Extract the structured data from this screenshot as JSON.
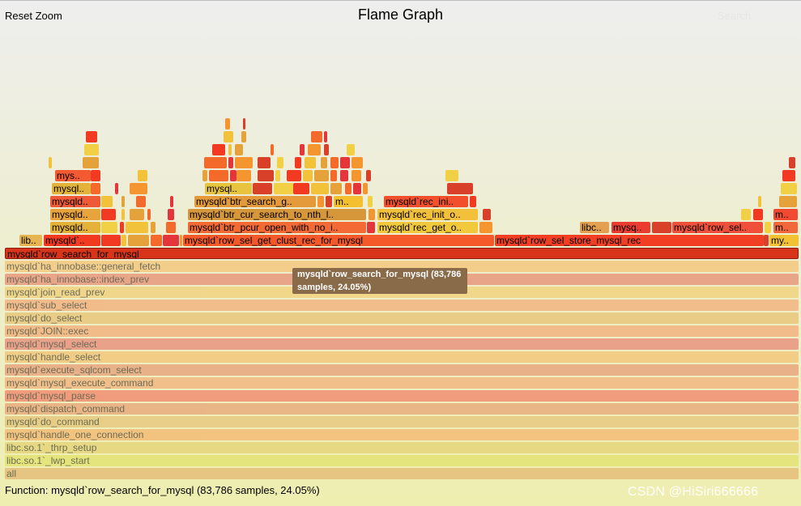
{
  "header": {
    "reset_zoom": "Reset Zoom",
    "title": "Flame Graph",
    "search": "Search"
  },
  "tooltip": {
    "line1": "mysqld`row_search_for_mysql (83,786",
    "line2": "samples, 24.05%)"
  },
  "details": "Function: mysqld`row_search_for_mysql (83,786 samples, 24.05%)",
  "watermark": "CSDN @HiSiri666666",
  "stack_frames": [
    {
      "name": "all",
      "color": "#e0a35a"
    },
    {
      "name": "libc.so.1`_lwp_start",
      "color": "#dede50"
    },
    {
      "name": "libc.so.1`_thrp_setup",
      "color": "#e2c85a"
    },
    {
      "name": "mysqld`handle_one_connection",
      "color": "#f7a050"
    },
    {
      "name": "mysqld`do_command",
      "color": "#e3b45e"
    },
    {
      "name": "mysqld`dispatch_command",
      "color": "#e6885a"
    },
    {
      "name": "mysqld`mysql_parse",
      "color": "#f25a48"
    },
    {
      "name": "mysqld`mysql_execute_command",
      "color": "#f49a5e"
    },
    {
      "name": "mysqld`execute_sqlcom_select",
      "color": "#e4805a"
    },
    {
      "name": "mysqld`handle_select",
      "color": "#f5b255"
    },
    {
      "name": "mysqld`mysql_select",
      "color": "#e5635a"
    },
    {
      "name": "mysqld`JOIN::exec",
      "color": "#f49458"
    },
    {
      "name": "mysqld`do_select",
      "color": "#e6b252"
    },
    {
      "name": "mysqld`sub_select",
      "color": "#f49558"
    },
    {
      "name": "mysqld`join_read_prev",
      "color": "#f2c456"
    },
    {
      "name": "mysqld`ha_innobase::index_prev",
      "color": "#e56a50"
    },
    {
      "name": "mysqld`ha_innobase::general_fetch",
      "color": "#f8b454"
    },
    {
      "name": "mysqld`row_search_for_mysql",
      "color": "#d8341a"
    }
  ],
  "upper_frames": [
    {
      "name": "lib..",
      "color": "#e6b450"
    },
    {
      "name": "mysqld`..",
      "color": "#f23a20"
    },
    {
      "name": "mysqld`row_sel_get_clust_rec_for_mysql",
      "color": "#f5592a"
    },
    {
      "name": "mysqld`row_sel_store_mysql_rec",
      "color": "#f23e22"
    },
    {
      "name": "my..",
      "color": "#f2c232"
    },
    {
      "name": "mysqld..",
      "color": "#e4b238"
    },
    {
      "name": "mysqld`btr_pcur_open_with_no_i..",
      "color": "#f46a34"
    },
    {
      "name": "mysqld`rec_get_o..",
      "color": "#f2c83c"
    },
    {
      "name": "libc..",
      "color": "#e2a050"
    },
    {
      "name": "mysq..",
      "color": "#ea3d30"
    },
    {
      "name": "mysqld`row_sel..",
      "color": "#f0503a"
    },
    {
      "name": "m..",
      "color": "#f2683a"
    },
    {
      "name": "mysqld..",
      "color": "#e8a43c"
    },
    {
      "name": "mysqld`btr_cur_search_to_nth_l..",
      "color": "#d6963a"
    },
    {
      "name": "mysqld`rec_init_o..",
      "color": "#f2c03a"
    },
    {
      "name": "m..",
      "color": "#f24a30"
    },
    {
      "name": "mysqld..",
      "color": "#ee5a38"
    },
    {
      "name": "mysqld`btr_search_g..",
      "color": "#e49a3a"
    },
    {
      "name": "m..",
      "color": "#f4c030"
    },
    {
      "name": "mysqld`rec_ini..",
      "color": "#f2502c"
    },
    {
      "name": "mysql..",
      "color": "#e4b43a"
    },
    {
      "name": "mysql..",
      "color": "#e8c43e"
    },
    {
      "name": "mys..",
      "color": "#f45a32"
    }
  ],
  "tiny_frame_colors": [
    "#f23a22",
    "#f2c23a",
    "#e6a23a",
    "#f46a2a",
    "#e4363a",
    "#f5952f",
    "#d8402a",
    "#f2d046"
  ]
}
